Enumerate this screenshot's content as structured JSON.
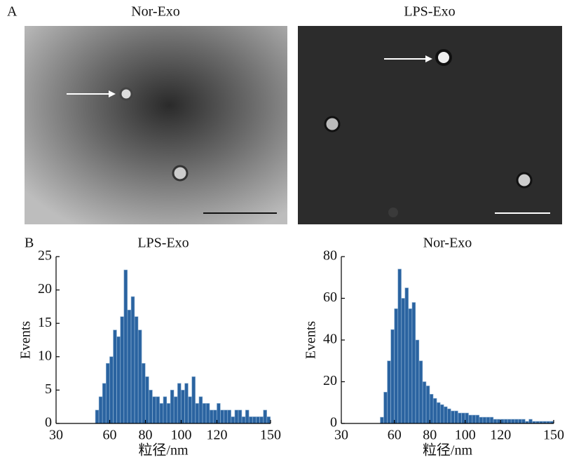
{
  "panel_a": {
    "label": "A",
    "images": [
      {
        "title": "Nor-Exo"
      },
      {
        "title": "LPS-Exo"
      }
    ]
  },
  "panel_b_label": "B",
  "chart_data": [
    {
      "type": "histogram",
      "title": "LPS-Exo",
      "xlabel": "粒径/nm",
      "ylabel": "Events",
      "color": "#2a63a0",
      "bins": [
        50,
        52,
        54,
        56,
        58,
        60,
        62,
        64,
        66,
        68,
        70,
        72,
        74,
        76,
        78,
        80,
        82,
        84,
        86,
        88,
        90,
        92,
        94,
        96,
        98,
        100,
        102,
        104,
        106,
        108,
        110,
        112,
        114,
        116,
        118,
        120,
        122,
        124,
        126,
        128,
        130,
        132,
        134,
        136,
        138,
        140,
        142,
        144,
        146,
        148,
        150
      ],
      "values": [
        0,
        2,
        4,
        6,
        9,
        10,
        14,
        13,
        16,
        23,
        17,
        19,
        16,
        14,
        9,
        7,
        5,
        4,
        4,
        3,
        4,
        3,
        5,
        4,
        6,
        5,
        6,
        4,
        7,
        3,
        4,
        3,
        3,
        2,
        2,
        3,
        2,
        2,
        2,
        1,
        2,
        2,
        1,
        2,
        1,
        1,
        1,
        1,
        2,
        1
      ],
      "xlim": [
        30,
        150
      ],
      "xticks": [
        30,
        60,
        80,
        100,
        120,
        150
      ],
      "ylim": [
        0,
        25
      ],
      "yticks": [
        0,
        5,
        10,
        15,
        20,
        25
      ]
    },
    {
      "type": "histogram",
      "title": "Nor-Exo",
      "xlabel": "粒径/nm",
      "ylabel": "Events",
      "color": "#2a63a0",
      "bins": [
        50,
        52,
        54,
        56,
        58,
        60,
        62,
        64,
        66,
        68,
        70,
        72,
        74,
        76,
        78,
        80,
        82,
        84,
        86,
        88,
        90,
        92,
        94,
        96,
        98,
        100,
        102,
        104,
        106,
        108,
        110,
        112,
        114,
        116,
        118,
        120,
        122,
        124,
        126,
        128,
        130,
        132,
        134,
        136,
        138,
        140,
        142,
        144,
        146,
        148,
        150
      ],
      "values": [
        0,
        3,
        15,
        30,
        45,
        55,
        74,
        60,
        65,
        55,
        58,
        40,
        30,
        20,
        18,
        14,
        12,
        10,
        9,
        8,
        7,
        6,
        6,
        5,
        5,
        5,
        4,
        4,
        4,
        3,
        3,
        3,
        3,
        2,
        2,
        2,
        2,
        2,
        2,
        2,
        2,
        2,
        1,
        2,
        1,
        1,
        1,
        1,
        1,
        1
      ],
      "xlim": [
        30,
        150
      ],
      "xticks": [
        30,
        60,
        80,
        100,
        120,
        150
      ],
      "ylim": [
        0,
        80
      ],
      "yticks": [
        0,
        20,
        40,
        60,
        80
      ]
    }
  ]
}
